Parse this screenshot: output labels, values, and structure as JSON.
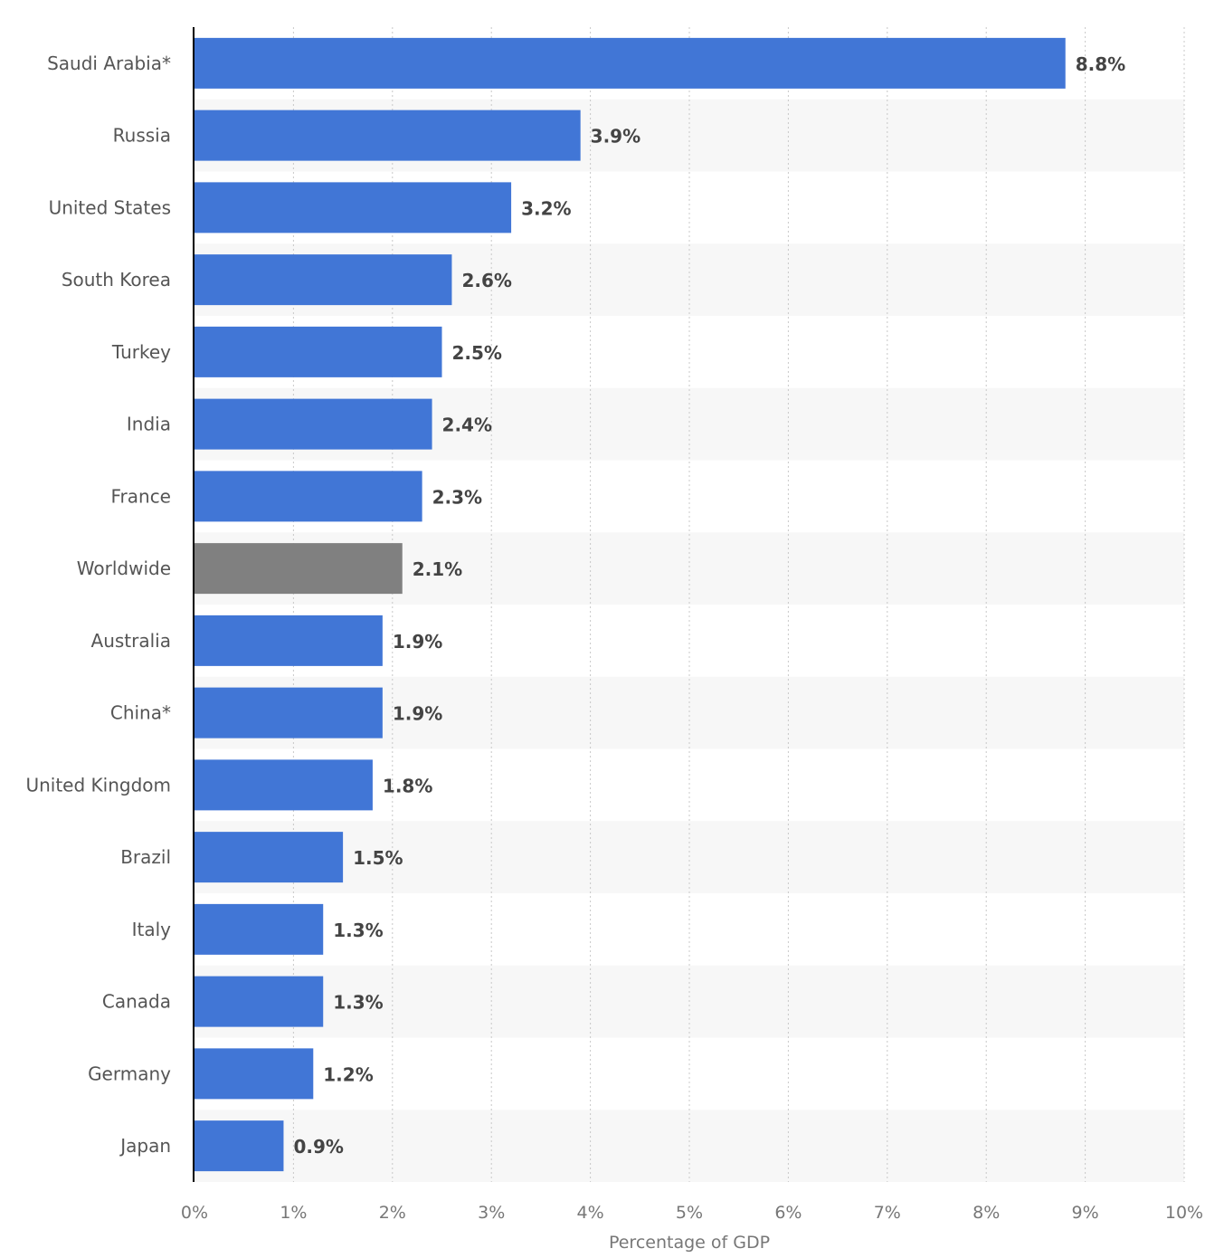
{
  "chart_data": {
    "type": "bar",
    "orientation": "horizontal",
    "categories": [
      "Saudi Arabia*",
      "Russia",
      "United States",
      "South Korea",
      "Turkey",
      "India",
      "France",
      "Worldwide",
      "Australia",
      "China*",
      "United Kingdom",
      "Brazil",
      "Italy",
      "Canada",
      "Germany",
      "Japan"
    ],
    "values": [
      8.8,
      3.9,
      3.2,
      2.6,
      2.5,
      2.4,
      2.3,
      2.1,
      1.9,
      1.9,
      1.8,
      1.5,
      1.3,
      1.3,
      1.2,
      0.9
    ],
    "value_labels": [
      "8.8%",
      "3.9%",
      "3.2%",
      "2.6%",
      "2.5%",
      "2.4%",
      "2.3%",
      "2.1%",
      "1.9%",
      "1.9%",
      "1.8%",
      "1.5%",
      "1.3%",
      "1.3%",
      "1.2%",
      "0.9%"
    ],
    "highlight_category": "Worldwide",
    "colors": {
      "bar": "#4176d6",
      "highlight_bar": "#808080",
      "band": "#f7f7f7",
      "grid": "#c8c8c8",
      "axis": "#000000"
    },
    "xlabel": "Percentage of GDP",
    "ylabel": "",
    "xlim": [
      0,
      10
    ],
    "x_ticks": [
      "0%",
      "1%",
      "2%",
      "3%",
      "4%",
      "5%",
      "6%",
      "7%",
      "8%",
      "9%",
      "10%"
    ],
    "grid": true,
    "legend": "none"
  }
}
